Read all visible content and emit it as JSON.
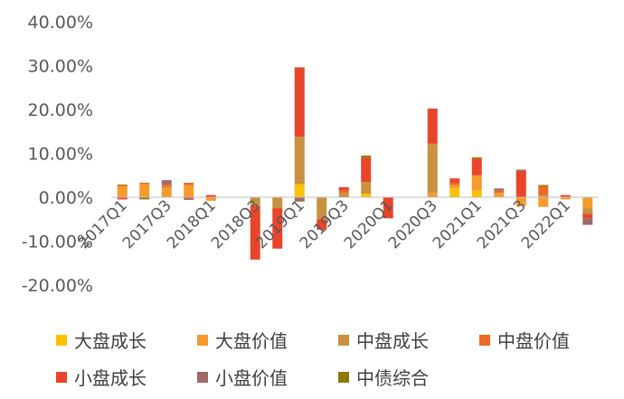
{
  "chart_data": {
    "type": "bar",
    "stacked": true,
    "title": "",
    "xlabel": "",
    "ylabel": "",
    "ylim": [
      -0.2,
      0.4
    ],
    "y_ticks": [
      "40.00%",
      "30.00%",
      "20.00%",
      "10.00%",
      "0.00%",
      "-10.00%",
      "-20.00%"
    ],
    "y_tick_values": [
      0.4,
      0.3,
      0.2,
      0.1,
      0.0,
      -0.1,
      -0.2
    ],
    "x_tick_labels": [
      "2017Q1",
      "2017Q3",
      "2018Q1",
      "2018Q3",
      "2019Q1",
      "2019Q3",
      "2020Q1",
      "2020Q3",
      "2021Q1",
      "2021Q3",
      "2022Q1"
    ],
    "categories": [
      "2017Q1",
      "2017Q2",
      "2017Q3",
      "2017Q4",
      "2018Q1",
      "2018Q2",
      "2018Q3",
      "2018Q4",
      "2019Q1",
      "2019Q2",
      "2019Q3",
      "2019Q4",
      "2020Q1",
      "2020Q2",
      "2020Q3",
      "2020Q4",
      "2021Q1",
      "2021Q2",
      "2021Q3",
      "2021Q4",
      "2022Q1",
      "2022Q2"
    ],
    "legend_position": "bottom",
    "grid": false,
    "series": [
      {
        "name": "大盘成长",
        "color": "#FFC000",
        "values": [
          0,
          0,
          0,
          0,
          0,
          0,
          0,
          0,
          0.03,
          0,
          0,
          0.008,
          0,
          0,
          0,
          0.02,
          0.015,
          0,
          0,
          0,
          0,
          0
        ]
      },
      {
        "name": "大盘价值",
        "color": "#F79A2C",
        "values": [
          0.025,
          0.03,
          0.02,
          0.028,
          -0.008,
          0,
          0,
          0,
          0,
          0,
          0,
          0,
          0,
          0,
          0.01,
          0.008,
          0.035,
          0.01,
          -0.02,
          -0.022,
          -0.005,
          -0.025
        ]
      },
      {
        "name": "中盘成长",
        "color": "#C8913F",
        "values": [
          0,
          0,
          0.005,
          0,
          0,
          0,
          -0.02,
          -0.025,
          0.108,
          -0.05,
          0.01,
          0.027,
          0,
          0,
          0.112,
          0,
          0,
          0,
          0,
          0.005,
          0,
          -0.013
        ]
      },
      {
        "name": "中盘价值",
        "color": "#EB6A24",
        "values": [
          0.002,
          0.003,
          0.004,
          0.005,
          0,
          0,
          0,
          0,
          0,
          0,
          0.005,
          0,
          0,
          0,
          0,
          0.005,
          0,
          0.005,
          0,
          0.02,
          0,
          0
        ]
      },
      {
        "name": "小盘成长",
        "color": "#E8452B",
        "values": [
          -0.005,
          0,
          0,
          -0.003,
          0.005,
          0,
          -0.122,
          -0.092,
          0.158,
          -0.024,
          0.008,
          0.055,
          -0.048,
          0,
          0.08,
          0.01,
          0.038,
          0,
          0.06,
          0,
          0.005,
          -0.01
        ]
      },
      {
        "name": "小盘价值",
        "color": "#9E6A6A",
        "values": [
          0,
          0,
          0.01,
          -0.003,
          0,
          0,
          0,
          0,
          -0.01,
          0,
          0,
          0,
          0,
          0,
          0,
          0,
          0,
          0.005,
          0.003,
          0,
          0,
          -0.015
        ]
      },
      {
        "name": "中债综合",
        "color": "#8B7A00",
        "values": [
          0.002,
          -0.005,
          0,
          0,
          0,
          0,
          0,
          0,
          0,
          0,
          0,
          0.005,
          0,
          0,
          0,
          0,
          0.003,
          0,
          0,
          0.003,
          0,
          0
        ]
      }
    ]
  }
}
